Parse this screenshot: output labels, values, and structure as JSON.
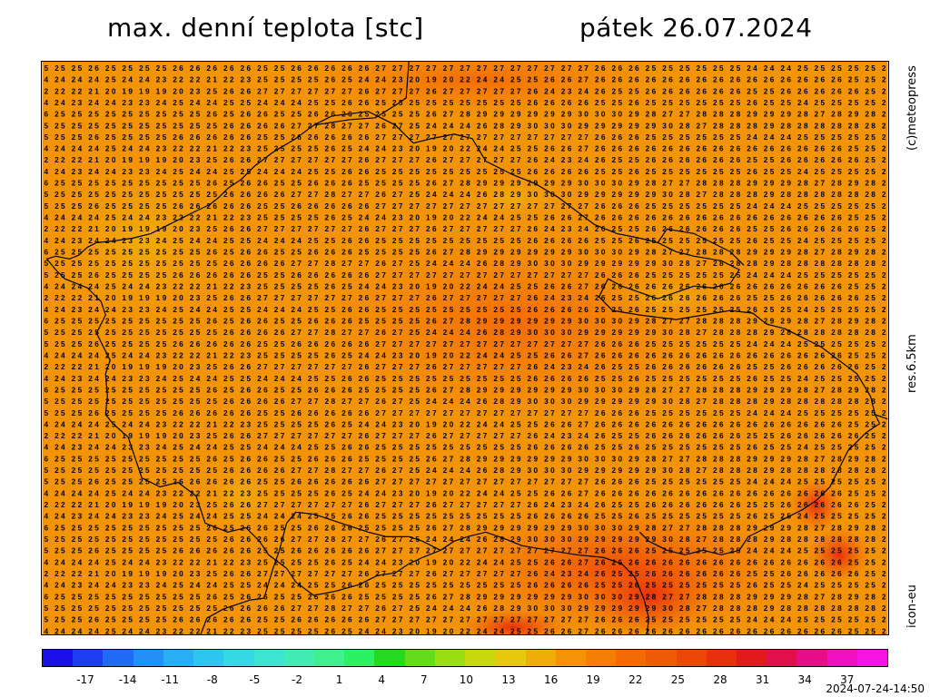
{
  "title": {
    "left": "max. denní teplota [stc]",
    "right": "pátek 26.07.2024"
  },
  "side_labels": {
    "copyright": "(c)meteopress",
    "resolution": "res.6.5km",
    "model": "icon-eu"
  },
  "timestamp": "2024-07-24-14:50",
  "legend": {
    "ticks": [
      "-17",
      "-14",
      "-11",
      "-8",
      "-5",
      "-2",
      "1",
      "4",
      "7",
      "10",
      "13",
      "16",
      "19",
      "22",
      "25",
      "28",
      "31",
      "34",
      "37"
    ],
    "colors": [
      "#1a10e8",
      "#1c3df0",
      "#1f6bf5",
      "#2390f7",
      "#29aef3",
      "#2ec6ee",
      "#35d8e5",
      "#3be5d2",
      "#41ecb5",
      "#3ff08f",
      "#2af260",
      "#25d822",
      "#64dc1c",
      "#9ade14",
      "#c8d810",
      "#e6c80c",
      "#f0ac08",
      "#f39406",
      "#f57f05",
      "#f46b05",
      "#f05a06",
      "#ec4708",
      "#e8300d",
      "#e31a1c",
      "#e2104a",
      "#e80e88",
      "#f010c0",
      "#f514e0"
    ]
  },
  "map": {
    "grid_row_values_sample": [
      "5 25 25 26 25 25 25 25 26 26 26 26 26 25 25 26 26 26 26 26 27 27 27 27 27 27 27 27 27 27 27 27 27 26 26 26 25 25 25 25 25 25 24 24 24 25 25 25 25 25 2",
      "4 24 24 24 25 24 24 23 22 22 21 22 23 25 25 25 25 26 25 24 24 23 20 19 20 22 24 24 25 25 26 26 27 26 26 26 26 26 26 26 26 26 26 26 26 26 26 26 25 25 2",
      "2 22 22 21 20 19 19 19 20 23 25 26 26 27 27 27 27 27 27 26 27 27 27 26 27 27 27 27 27 26 24 23 24 26 25 25 26 26 26 26 26 26 25 25 26 26 26 26 26 25 2",
      "4 24 23 24 24 23 23 24 25 24 24 25 25 24 24 24 25 25 26 26 25 25 25 25 25 25 25 25 25 26 26 26 26 25 25 26 25 25 25 25 25 25 26 25 25 24 25 25 25 25 2",
      "6 25 25 25 25 25 25 25 25 25 26 25 26 26 25 25 26 26 26 25 25 25 25 26 27 28 29 29 29 29 29 29 30 30 30 29 28 27 27 28 28 28 29 29 29 28 27 28 29 28 2",
      "5 25 25 25 25 25 25 25 25 25 25 26 26 26 26 27 27 28 27 27 26 27 25 24 24 24 26 28 29 30 30 30 29 29 29 29 29 30 28 27 28 28 28 29 28 28 28 28 28 28 2"
    ]
  }
}
